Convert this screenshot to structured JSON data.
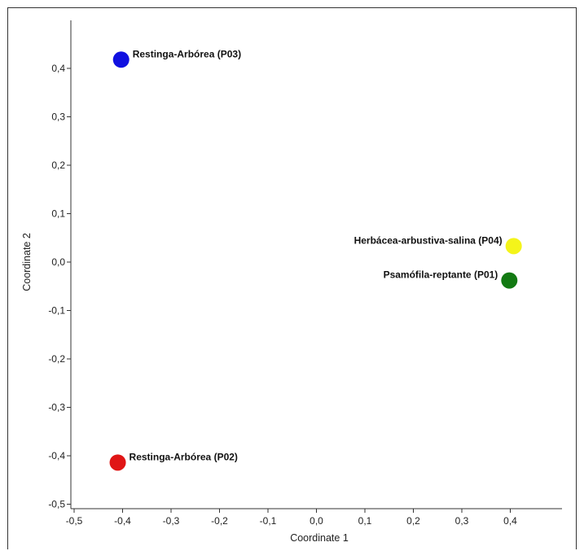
{
  "chart_data": {
    "type": "scatter",
    "xlabel": "Coordinate 1",
    "ylabel": "Coordinate 2",
    "xlim": [
      -0.5,
      0.5
    ],
    "ylim": [
      -0.5,
      0.5
    ],
    "x_ticks": [
      "-0,5",
      "-0,4",
      "-0,3",
      "-0,2",
      "-0,1",
      "0,0",
      "0,1",
      "0,2",
      "0,3",
      "0,4"
    ],
    "y_ticks": [
      "0,4",
      "0,3",
      "0,2",
      "0,1",
      "0,0",
      "-0,1",
      "-0,2",
      "-0,3",
      "-0,4",
      "-0,5"
    ],
    "grid": false,
    "points": [
      {
        "label": "Restinga-Arbórea (P03)",
        "x": -0.403,
        "y": 0.418,
        "color": "#1010e0",
        "label_side": "right"
      },
      {
        "label": "Herbácea-arbustiva-salina (P04)",
        "x": 0.407,
        "y": 0.033,
        "color": "#f4f41a",
        "label_side": "left"
      },
      {
        "label": "Psamófila-reptante (P01)",
        "x": 0.398,
        "y": -0.038,
        "color": "#137a13",
        "label_side": "left"
      },
      {
        "label": "Restinga-Arbórea (P02)",
        "x": -0.41,
        "y": -0.414,
        "color": "#e01515",
        "label_side": "right"
      }
    ]
  }
}
